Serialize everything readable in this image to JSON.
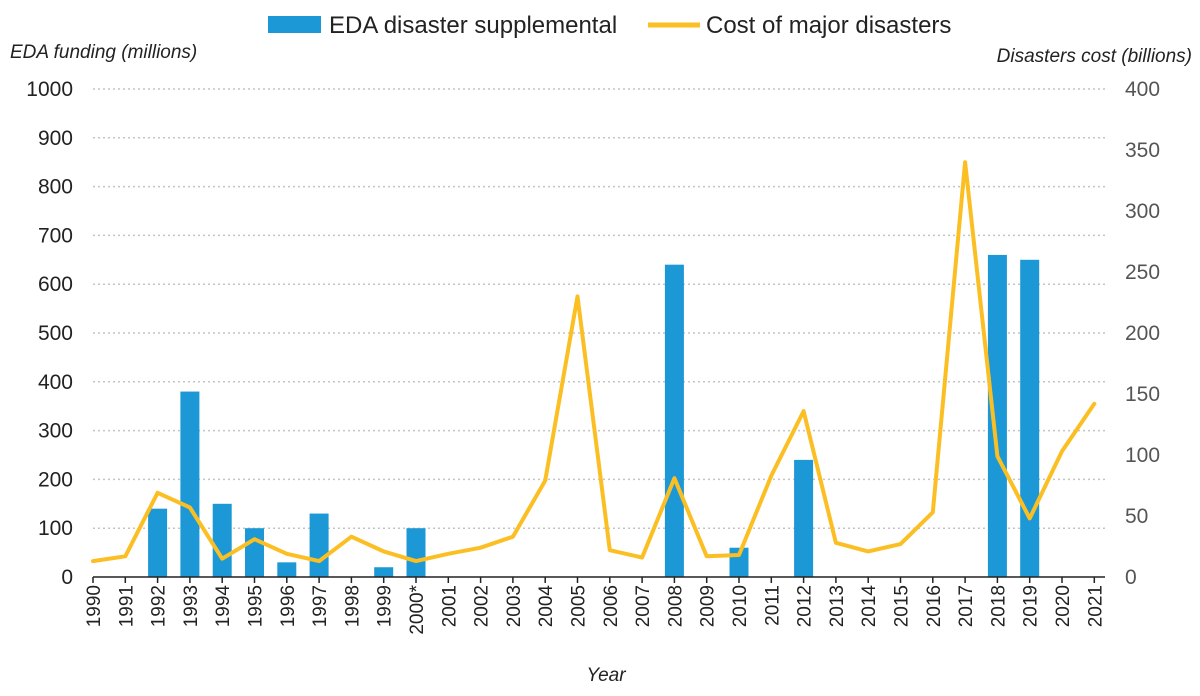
{
  "chart_data": {
    "type": "bar",
    "title": "",
    "xlabel": "Year",
    "ylabel": "EDA funding (millions)",
    "y2label": "Disasters cost (billions)",
    "categories": [
      "1990",
      "1991",
      "1992",
      "1993",
      "1994",
      "1995",
      "1996",
      "1997",
      "1998",
      "1999",
      "2000*",
      "2001",
      "2002",
      "2003",
      "2004",
      "2005",
      "2006",
      "2007",
      "2008",
      "2009",
      "2010",
      "2011",
      "2012",
      "2013",
      "2014",
      "2015",
      "2016",
      "2017",
      "2018",
      "2019",
      "2020",
      "2021"
    ],
    "ylim": [
      0,
      1000
    ],
    "y2lim": [
      0,
      400
    ],
    "yticks": [
      "0",
      "100",
      "200",
      "300",
      "400",
      "500",
      "600",
      "700",
      "800",
      "900",
      "1000"
    ],
    "y2ticks": [
      "0",
      "50",
      "100",
      "150",
      "200",
      "250",
      "300",
      "350",
      "400"
    ],
    "grid": true,
    "legend_position": "top-center",
    "series": [
      {
        "name": "EDA disaster supplemental",
        "kind": "bar",
        "axis": "left",
        "color": "#1b98d5",
        "values": [
          0,
          0,
          140,
          380,
          150,
          100,
          30,
          130,
          0,
          20,
          100,
          0,
          0,
          0,
          0,
          0,
          0,
          0,
          640,
          0,
          60,
          0,
          240,
          0,
          0,
          0,
          0,
          0,
          660,
          650,
          0,
          0
        ]
      },
      {
        "name": "Cost of major disasters",
        "kind": "line",
        "axis": "right",
        "color": "#fbbf24",
        "values": [
          13,
          17,
          69,
          57,
          15,
          31,
          19,
          13,
          33,
          21,
          13,
          19,
          24,
          33,
          79,
          230,
          22,
          16,
          81,
          17,
          18,
          83,
          136,
          28,
          21,
          27,
          53,
          340,
          99,
          48,
          103,
          142
        ]
      }
    ]
  }
}
